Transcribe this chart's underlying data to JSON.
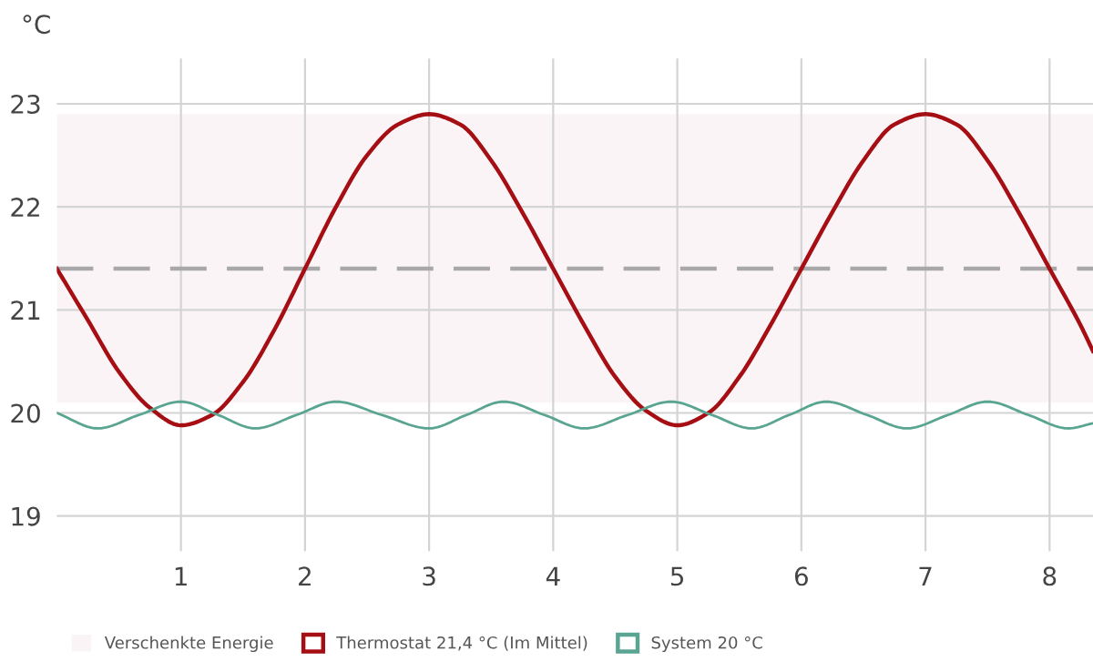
{
  "chart_data": {
    "type": "line",
    "ylabel": "°C",
    "xlim": [
      0,
      8.35
    ],
    "ylim": [
      18.66,
      23.44
    ],
    "xticks": [
      1,
      2,
      3,
      4,
      5,
      6,
      7,
      8
    ],
    "yticks": [
      19,
      20,
      21,
      22,
      23
    ],
    "grid": true,
    "legend": "bottom",
    "marker": "none",
    "line_style": "solid",
    "bands": [
      {
        "axis": "y",
        "from": 20.1,
        "to": 22.9,
        "label": "Verschenkte Energie",
        "color": "#fbf4f6"
      }
    ],
    "ref_lines": [
      {
        "axis": "y",
        "value": 21.4,
        "color": "#a8a8a8",
        "line_style": "dashed"
      }
    ],
    "series": [
      {
        "name": "Thermostat 21,4 °C (Im Mittel)",
        "color": "#a50f14",
        "x": [
          0,
          0.25,
          0.5,
          0.75,
          1,
          1.25,
          1.5,
          1.75,
          2,
          2.25,
          2.5,
          2.75,
          3,
          3.25,
          3.5,
          3.75,
          4,
          4.25,
          4.5,
          4.75,
          5,
          5.25,
          5.5,
          5.75,
          6,
          6.25,
          6.5,
          6.75,
          7,
          7.25,
          7.5,
          7.75,
          8,
          8.25,
          8.35
        ],
        "values": [
          21.4,
          20.9,
          20.4,
          20.05,
          19.88,
          19.98,
          20.3,
          20.8,
          21.4,
          22.0,
          22.5,
          22.8,
          22.9,
          22.8,
          22.45,
          21.95,
          21.4,
          20.85,
          20.35,
          20.02,
          19.88,
          20.0,
          20.35,
          20.85,
          21.4,
          21.95,
          22.45,
          22.8,
          22.9,
          22.8,
          22.45,
          21.95,
          21.4,
          20.85,
          20.6
        ]
      },
      {
        "name": "System 20 °C",
        "color": "#5aa592",
        "x": [
          0,
          0.33,
          0.66,
          1.0,
          1.3,
          1.6,
          1.93,
          2.25,
          2.62,
          3.0,
          3.3,
          3.6,
          3.93,
          4.25,
          4.6,
          4.95,
          5.28,
          5.6,
          5.9,
          6.2,
          6.53,
          6.85,
          7.18,
          7.5,
          7.83,
          8.15,
          8.35
        ],
        "values": [
          20.0,
          19.85,
          19.98,
          20.11,
          19.98,
          19.85,
          19.98,
          20.11,
          19.98,
          19.85,
          19.98,
          20.11,
          19.98,
          19.85,
          19.98,
          20.11,
          19.98,
          19.85,
          19.98,
          20.11,
          19.98,
          19.85,
          19.98,
          20.11,
          19.98,
          19.85,
          19.9
        ]
      }
    ]
  }
}
